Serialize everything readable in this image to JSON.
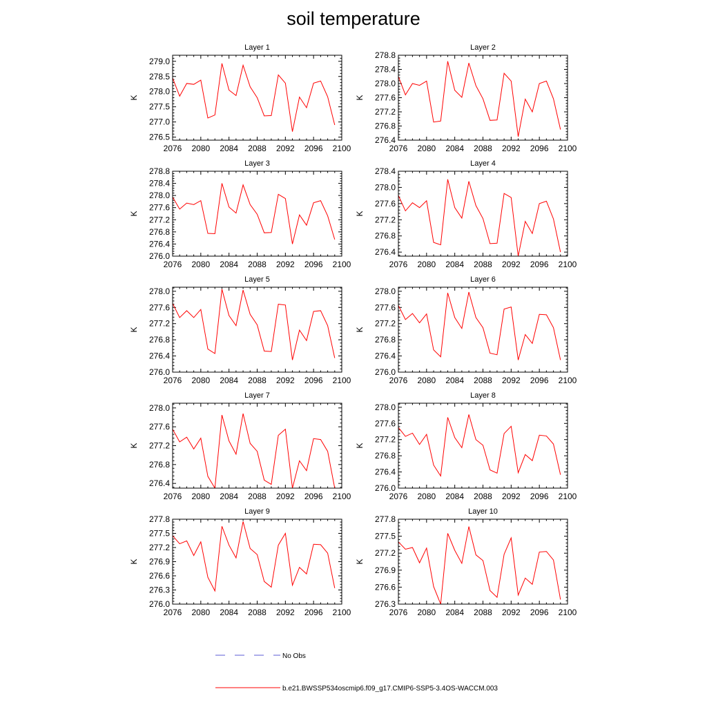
{
  "title": "soil temperature",
  "legend": [
    {
      "label": "No Obs",
      "color": "#5b5bd6",
      "style": "dashed"
    },
    {
      "label": "b.e21.BWSSP534oscmip6.f09_g17.CMIP6-SSP5-3.4OS-WACCM.003",
      "color": "#ff0000",
      "style": "solid"
    }
  ],
  "chart_data": [
    {
      "type": "line",
      "title": "Layer 1",
      "ylabel": "K",
      "xlim": [
        2076,
        2100
      ],
      "ylim": [
        276.4,
        279.2
      ],
      "xticks": [
        "2076",
        "2080",
        "2084",
        "2088",
        "2092",
        "2096",
        "2100"
      ],
      "yticks": [
        "276.5",
        "277.0",
        "277.5",
        "278.0",
        "278.5",
        "279.0"
      ],
      "series": [
        {
          "color": "#ff0000",
          "x": [
            2076,
            2077,
            2078,
            2079,
            2080,
            2081,
            2082,
            2083,
            2084,
            2085,
            2086,
            2087,
            2088,
            2089,
            2090,
            2091,
            2092,
            2093,
            2094,
            2095,
            2096,
            2097,
            2098,
            2099
          ],
          "y": [
            278.45,
            277.85,
            278.27,
            278.24,
            278.38,
            277.13,
            277.23,
            278.93,
            278.05,
            277.87,
            278.87,
            278.16,
            277.8,
            277.2,
            277.21,
            278.55,
            278.28,
            276.68,
            277.82,
            277.47,
            278.28,
            278.35,
            277.83,
            276.9
          ]
        }
      ]
    },
    {
      "type": "line",
      "title": "Layer 2",
      "ylabel": "K",
      "xlim": [
        2076,
        2100
      ],
      "ylim": [
        276.4,
        278.8
      ],
      "xticks": [
        "2076",
        "2080",
        "2084",
        "2088",
        "2092",
        "2096",
        "2100"
      ],
      "yticks": [
        "276.4",
        "276.8",
        "277.2",
        "277.6",
        "278.0",
        "278.4",
        "278.8"
      ],
      "series": [
        {
          "color": "#ff0000",
          "x": [
            2076,
            2077,
            2078,
            2079,
            2080,
            2081,
            2082,
            2083,
            2084,
            2085,
            2086,
            2087,
            2088,
            2089,
            2090,
            2091,
            2092,
            2093,
            2094,
            2095,
            2096,
            2097,
            2098,
            2099
          ],
          "y": [
            278.2,
            277.68,
            278.0,
            277.95,
            278.07,
            276.91,
            276.94,
            278.63,
            277.81,
            277.61,
            278.58,
            277.94,
            277.57,
            276.96,
            276.97,
            278.29,
            278.07,
            276.5,
            277.56,
            277.2,
            278.0,
            278.07,
            277.57,
            276.7
          ]
        }
      ]
    },
    {
      "type": "line",
      "title": "Layer 3",
      "ylabel": "K",
      "xlim": [
        2076,
        2100
      ],
      "ylim": [
        276.0,
        278.8
      ],
      "xticks": [
        "2076",
        "2080",
        "2084",
        "2088",
        "2092",
        "2096",
        "2100"
      ],
      "yticks": [
        "276.0",
        "276.4",
        "276.8",
        "277.2",
        "277.6",
        "278.0",
        "278.4",
        "278.8"
      ],
      "series": [
        {
          "color": "#ff0000",
          "x": [
            2076,
            2077,
            2078,
            2079,
            2080,
            2081,
            2082,
            2083,
            2084,
            2085,
            2086,
            2087,
            2088,
            2089,
            2090,
            2091,
            2092,
            2093,
            2094,
            2095,
            2096,
            2097,
            2098,
            2099
          ],
          "y": [
            277.95,
            277.55,
            277.75,
            277.7,
            277.83,
            276.75,
            276.74,
            278.4,
            277.62,
            277.42,
            278.35,
            277.7,
            277.38,
            276.77,
            276.78,
            278.04,
            277.9,
            276.4,
            277.36,
            277.02,
            277.76,
            277.83,
            277.33,
            276.55
          ]
        }
      ]
    },
    {
      "type": "line",
      "title": "Layer 4",
      "ylabel": "K",
      "xlim": [
        2076,
        2100
      ],
      "ylim": [
        276.3,
        278.4
      ],
      "xticks": [
        "2076",
        "2080",
        "2084",
        "2088",
        "2092",
        "2096",
        "2100"
      ],
      "yticks": [
        "276.4",
        "276.8",
        "277.2",
        "277.6",
        "278.0",
        "278.4"
      ],
      "series": [
        {
          "color": "#ff0000",
          "x": [
            2076,
            2077,
            2078,
            2079,
            2080,
            2081,
            2082,
            2083,
            2084,
            2085,
            2086,
            2087,
            2088,
            2089,
            2090,
            2091,
            2092,
            2093,
            2094,
            2095,
            2096,
            2097,
            2098,
            2099
          ],
          "y": [
            277.8,
            277.42,
            277.62,
            277.5,
            277.67,
            276.64,
            276.58,
            278.2,
            277.5,
            277.24,
            278.15,
            277.55,
            277.23,
            276.61,
            276.62,
            277.85,
            277.75,
            276.3,
            277.16,
            276.86,
            277.6,
            277.66,
            277.22,
            276.4
          ]
        }
      ]
    },
    {
      "type": "line",
      "title": "Layer 5",
      "ylabel": "K",
      "xlim": [
        2076,
        2100
      ],
      "ylim": [
        276.0,
        278.1
      ],
      "xticks": [
        "2076",
        "2080",
        "2084",
        "2088",
        "2092",
        "2096",
        "2100"
      ],
      "yticks": [
        "276.0",
        "276.4",
        "276.8",
        "277.2",
        "277.6",
        "278.0"
      ],
      "series": [
        {
          "color": "#ff0000",
          "x": [
            2076,
            2077,
            2078,
            2079,
            2080,
            2081,
            2082,
            2083,
            2084,
            2085,
            2086,
            2087,
            2088,
            2089,
            2090,
            2091,
            2092,
            2093,
            2094,
            2095,
            2096,
            2097,
            2098,
            2099
          ],
          "y": [
            277.7,
            277.35,
            277.52,
            277.35,
            277.55,
            276.57,
            276.46,
            278.05,
            277.4,
            277.15,
            278.03,
            277.43,
            277.17,
            276.52,
            276.51,
            277.68,
            277.66,
            276.3,
            277.04,
            276.78,
            277.5,
            277.52,
            277.15,
            276.35
          ]
        }
      ]
    },
    {
      "type": "line",
      "title": "Layer 6",
      "ylabel": "K",
      "xlim": [
        2076,
        2100
      ],
      "ylim": [
        276.0,
        278.1
      ],
      "xticks": [
        "2076",
        "2080",
        "2084",
        "2088",
        "2092",
        "2096",
        "2100"
      ],
      "yticks": [
        "276.0",
        "276.4",
        "276.8",
        "277.2",
        "277.6",
        "278.0"
      ],
      "series": [
        {
          "color": "#ff0000",
          "x": [
            2076,
            2077,
            2078,
            2079,
            2080,
            2081,
            2082,
            2083,
            2084,
            2085,
            2086,
            2087,
            2088,
            2089,
            2090,
            2091,
            2092,
            2093,
            2094,
            2095,
            2096,
            2097,
            2098,
            2099
          ],
          "y": [
            277.65,
            277.3,
            277.45,
            277.22,
            277.44,
            276.55,
            276.38,
            277.96,
            277.35,
            277.08,
            277.98,
            277.35,
            277.1,
            276.47,
            276.43,
            277.56,
            277.61,
            276.3,
            276.93,
            276.71,
            277.43,
            277.42,
            277.1,
            276.3
          ]
        }
      ]
    },
    {
      "type": "line",
      "title": "Layer 7",
      "ylabel": "K",
      "xlim": [
        2076,
        2100
      ],
      "ylim": [
        276.3,
        278.1
      ],
      "xticks": [
        "2076",
        "2080",
        "2084",
        "2088",
        "2092",
        "2096",
        "2100"
      ],
      "yticks": [
        "276.4",
        "276.8",
        "277.2",
        "277.6",
        "278.0"
      ],
      "series": [
        {
          "color": "#ff0000",
          "x": [
            2076,
            2077,
            2078,
            2079,
            2080,
            2081,
            2082,
            2083,
            2084,
            2085,
            2086,
            2087,
            2088,
            2089,
            2090,
            2091,
            2092,
            2093,
            2094,
            2095,
            2096,
            2097,
            2098,
            2099
          ],
          "y": [
            277.55,
            277.28,
            277.38,
            277.13,
            277.36,
            276.55,
            276.3,
            277.85,
            277.3,
            277.02,
            277.88,
            277.25,
            277.08,
            276.47,
            276.38,
            277.42,
            277.55,
            276.3,
            276.88,
            276.67,
            277.35,
            277.33,
            277.08,
            276.3
          ]
        }
      ]
    },
    {
      "type": "line",
      "title": "Layer 8",
      "ylabel": "K",
      "xlim": [
        2076,
        2100
      ],
      "ylim": [
        276.0,
        278.1
      ],
      "xticks": [
        "2076",
        "2080",
        "2084",
        "2088",
        "2092",
        "2096",
        "2100"
      ],
      "yticks": [
        "276.0",
        "276.4",
        "276.8",
        "277.2",
        "277.6",
        "278.0"
      ],
      "series": [
        {
          "color": "#ff0000",
          "x": [
            2076,
            2077,
            2078,
            2079,
            2080,
            2081,
            2082,
            2083,
            2084,
            2085,
            2086,
            2087,
            2088,
            2089,
            2090,
            2091,
            2092,
            2093,
            2094,
            2095,
            2096,
            2097,
            2098,
            2099
          ],
          "y": [
            277.5,
            277.28,
            277.36,
            277.08,
            277.33,
            276.57,
            276.3,
            277.75,
            277.25,
            277.0,
            277.82,
            277.2,
            277.06,
            276.45,
            276.37,
            277.35,
            277.53,
            276.38,
            276.83,
            276.68,
            277.31,
            277.29,
            277.09,
            276.33
          ]
        }
      ]
    },
    {
      "type": "line",
      "title": "Layer 9",
      "ylabel": "K",
      "xlim": [
        2076,
        2100
      ],
      "ylim": [
        276.0,
        277.8
      ],
      "xticks": [
        "2076",
        "2080",
        "2084",
        "2088",
        "2092",
        "2096",
        "2100"
      ],
      "yticks": [
        "276.0",
        "276.3",
        "276.6",
        "276.9",
        "277.2",
        "277.5",
        "277.8"
      ],
      "series": [
        {
          "color": "#ff0000",
          "x": [
            2076,
            2077,
            2078,
            2079,
            2080,
            2081,
            2082,
            2083,
            2084,
            2085,
            2086,
            2087,
            2088,
            2089,
            2090,
            2091,
            2092,
            2093,
            2094,
            2095,
            2096,
            2097,
            2098,
            2099
          ],
          "y": [
            277.45,
            277.28,
            277.34,
            277.03,
            277.32,
            276.57,
            276.28,
            277.65,
            277.25,
            276.98,
            277.75,
            277.18,
            277.05,
            276.48,
            276.36,
            277.25,
            277.5,
            276.4,
            276.78,
            276.64,
            277.27,
            277.26,
            277.08,
            276.34
          ]
        }
      ]
    },
    {
      "type": "line",
      "title": "Layer 10",
      "ylabel": "K",
      "xlim": [
        2076,
        2100
      ],
      "ylim": [
        276.3,
        277.8
      ],
      "xticks": [
        "2076",
        "2080",
        "2084",
        "2088",
        "2092",
        "2096",
        "2100"
      ],
      "yticks": [
        "276.3",
        "276.6",
        "276.9",
        "277.2",
        "277.5",
        "277.8"
      ],
      "series": [
        {
          "color": "#ff0000",
          "x": [
            2076,
            2077,
            2078,
            2079,
            2080,
            2081,
            2082,
            2083,
            2084,
            2085,
            2086,
            2087,
            2088,
            2089,
            2090,
            2091,
            2092,
            2093,
            2094,
            2095,
            2096,
            2097,
            2098,
            2099
          ],
          "y": [
            277.4,
            277.27,
            277.3,
            277.03,
            277.29,
            276.61,
            276.3,
            277.55,
            277.25,
            277.02,
            277.67,
            277.17,
            277.07,
            276.54,
            276.42,
            277.18,
            277.47,
            276.46,
            276.76,
            276.65,
            277.22,
            277.23,
            277.08,
            276.38
          ]
        }
      ]
    }
  ]
}
